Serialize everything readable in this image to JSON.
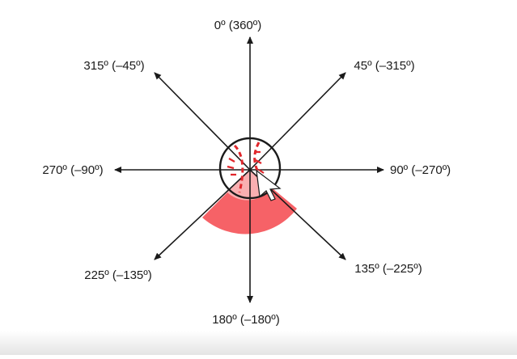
{
  "diagram": {
    "labels": {
      "n": "0º (360º)",
      "ne": "45º (–315º)",
      "e": "90º (–270º)",
      "se": "135º (–225º)",
      "s": "180º (–180º)",
      "sw": "225º (–135º)",
      "w": "270º (–90º)",
      "nw": "315º (–45º)"
    },
    "colors": {
      "axis": "#1a1a1a",
      "sector": "#f5555a",
      "sector_light": "#fcdcdd",
      "baseball_stitch": "#e0262b"
    },
    "icons": [
      "baseball-icon",
      "mouse-cursor-icon"
    ]
  }
}
